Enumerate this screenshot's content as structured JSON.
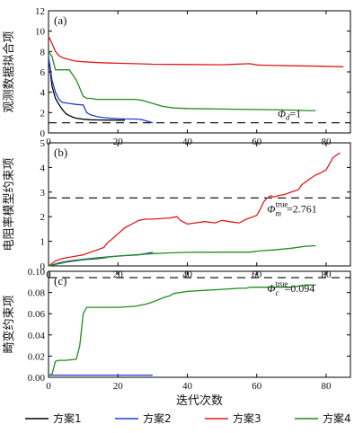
{
  "chart_data": [
    {
      "type": "line",
      "panel_label": "(a)",
      "ylabel": "观测数据拟合项",
      "xlim": [
        0,
        87
      ],
      "ylim": [
        0,
        12
      ],
      "xticks": [
        "0",
        "20",
        "40",
        "60",
        "80"
      ],
      "yticks": [
        "0",
        "2",
        "4",
        "6",
        "8",
        "10",
        "12"
      ],
      "target": 1.0,
      "target_label": "Φ_d=1",
      "series": [
        {
          "name": "方案1",
          "color": "#000000",
          "x": [
            0,
            1,
            2,
            3,
            4,
            5,
            6,
            7,
            8,
            10,
            12,
            14,
            16,
            18,
            20,
            22
          ],
          "y": [
            7.5,
            4.6,
            3.4,
            2.8,
            2.3,
            1.9,
            1.7,
            1.55,
            1.45,
            1.35,
            1.3,
            1.28,
            1.27,
            1.26,
            1.25,
            1.25
          ]
        },
        {
          "name": "方案2",
          "color": "#1f3fd1",
          "x": [
            0,
            1,
            2,
            3,
            4,
            5,
            6,
            8,
            10,
            11,
            12,
            14,
            16,
            18,
            20,
            22,
            24,
            26,
            27,
            28,
            29,
            30
          ],
          "y": [
            7.5,
            5.2,
            4.0,
            3.3,
            3.0,
            2.95,
            2.9,
            2.8,
            2.75,
            2.0,
            1.8,
            1.6,
            1.5,
            1.45,
            1.4,
            1.38,
            1.37,
            1.36,
            1.3,
            1.2,
            1.1,
            1.0
          ]
        },
        {
          "name": "方案3",
          "color": "#e01b1b",
          "x": [
            0,
            1,
            2,
            3,
            4,
            5,
            6,
            8,
            10,
            12,
            15,
            20,
            25,
            30,
            40,
            50,
            58,
            60,
            62,
            70,
            80,
            85
          ],
          "y": [
            9.5,
            8.8,
            8.0,
            7.6,
            7.4,
            7.3,
            7.2,
            7.05,
            7.0,
            6.95,
            6.9,
            6.85,
            6.8,
            6.75,
            6.72,
            6.7,
            6.8,
            6.68,
            6.65,
            6.6,
            6.55,
            6.5
          ]
        },
        {
          "name": "方案4",
          "color": "#1f8c1f",
          "x": [
            0,
            1,
            2,
            3,
            6,
            8,
            9,
            10,
            11,
            12,
            14,
            16,
            20,
            25,
            27,
            30,
            33,
            36,
            40,
            50,
            60,
            70,
            75,
            77
          ],
          "y": [
            8.0,
            7.5,
            6.2,
            6.2,
            6.2,
            5.2,
            4.4,
            3.6,
            3.4,
            3.4,
            3.3,
            3.3,
            3.3,
            3.3,
            3.2,
            2.9,
            2.6,
            2.45,
            2.4,
            2.35,
            2.3,
            2.25,
            2.2,
            2.2
          ]
        }
      ]
    },
    {
      "type": "line",
      "panel_label": "(b)",
      "ylabel": "电阻率模型约束项",
      "xlim": [
        0,
        87
      ],
      "ylim": [
        0,
        5
      ],
      "xticks": [
        "0",
        "20",
        "40",
        "60",
        "80"
      ],
      "yticks": [
        "0",
        "1",
        "2",
        "3",
        "4",
        "5"
      ],
      "target": 2.761,
      "target_label": "Φ_m^true=2.761",
      "series": [
        {
          "name": "方案1",
          "color": "#000000",
          "x": [
            0,
            3,
            6,
            10,
            14,
            16,
            17
          ],
          "y": [
            0,
            0.1,
            0.18,
            0.25,
            0.3,
            0.33,
            0.35
          ]
        },
        {
          "name": "方案2",
          "color": "#1f3fd1",
          "x": [
            0,
            3,
            6,
            10,
            14,
            18,
            22,
            26,
            28,
            30
          ],
          "y": [
            0,
            0.12,
            0.2,
            0.27,
            0.33,
            0.38,
            0.42,
            0.45,
            0.5,
            0.55
          ]
        },
        {
          "name": "方案3",
          "color": "#e01b1b",
          "x": [
            0,
            2,
            4,
            6,
            8,
            10,
            12,
            14,
            16,
            17,
            18,
            20,
            22,
            24,
            26,
            28,
            30,
            35,
            37,
            38,
            40,
            45,
            48,
            50,
            52,
            55,
            57,
            58,
            60,
            61,
            62,
            63,
            64,
            65,
            66,
            68,
            70,
            72,
            73,
            74,
            76,
            77,
            78,
            80,
            82,
            84
          ],
          "y": [
            0,
            0.2,
            0.3,
            0.35,
            0.4,
            0.45,
            0.55,
            0.65,
            0.75,
            0.95,
            1.05,
            1.3,
            1.55,
            1.7,
            1.85,
            1.9,
            1.9,
            1.95,
            2.0,
            1.85,
            1.7,
            1.8,
            1.75,
            1.85,
            1.8,
            1.75,
            1.9,
            1.95,
            2.05,
            2.3,
            2.6,
            2.75,
            2.85,
            2.8,
            2.85,
            2.9,
            3.0,
            3.1,
            3.3,
            3.4,
            3.6,
            3.7,
            3.75,
            3.9,
            4.4,
            4.6
          ]
        },
        {
          "name": "方案4",
          "color": "#1f8c1f",
          "x": [
            0,
            5,
            10,
            15,
            20,
            25,
            30,
            35,
            40,
            50,
            58,
            60,
            62,
            65,
            70,
            74,
            77
          ],
          "y": [
            0,
            0.15,
            0.25,
            0.33,
            0.4,
            0.45,
            0.5,
            0.53,
            0.55,
            0.56,
            0.56,
            0.6,
            0.62,
            0.65,
            0.72,
            0.8,
            0.82
          ]
        }
      ]
    },
    {
      "type": "line",
      "panel_label": "(c)",
      "ylabel": "畸变约束项",
      "xlabel": "迭代次数",
      "xlim": [
        0,
        87
      ],
      "ylim": [
        0,
        0.1
      ],
      "xticks": [
        "0",
        "20",
        "40",
        "60",
        "80"
      ],
      "yticks": [
        "0.00",
        "0.02",
        "0.04",
        "0.06",
        "0.08",
        "0.10"
      ],
      "target": 0.094,
      "target_label": "Φ_c^true=0.094",
      "series": [
        {
          "name": "方案2",
          "color": "#1f3fd1",
          "x": [
            0,
            30
          ],
          "y": [
            0.002,
            0.002
          ]
        },
        {
          "name": "方案4",
          "color": "#1f8c1f",
          "x": [
            0,
            1,
            2,
            3,
            5,
            8,
            9,
            10,
            11,
            12,
            15,
            20,
            25,
            28,
            30,
            33,
            35,
            36,
            40,
            45,
            50,
            55,
            57,
            58,
            60,
            65,
            70,
            74,
            77
          ],
          "y": [
            0.002,
            0.003,
            0.015,
            0.016,
            0.016,
            0.017,
            0.03,
            0.06,
            0.066,
            0.066,
            0.066,
            0.066,
            0.067,
            0.069,
            0.071,
            0.075,
            0.077,
            0.079,
            0.081,
            0.082,
            0.083,
            0.084,
            0.084,
            0.085,
            0.085,
            0.085,
            0.085,
            0.087,
            0.087
          ]
        }
      ]
    }
  ],
  "legend": [
    {
      "label": "方案1",
      "color": "#000000"
    },
    {
      "label": "方案2",
      "color": "#1f3fd1"
    },
    {
      "label": "方案3",
      "color": "#e01b1b"
    },
    {
      "label": "方案4",
      "color": "#1f8c1f"
    }
  ]
}
